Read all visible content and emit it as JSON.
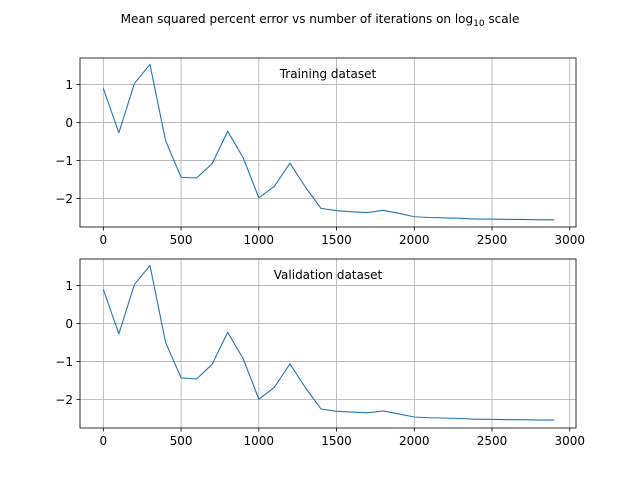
{
  "figure": {
    "suptitle_main": "Mean squared percent error vs number of iterations on log",
    "suptitle_sub": "10",
    "suptitle_tail": " scale"
  },
  "colors": {
    "line": "#1f77b4",
    "grid": "#b0b0b0",
    "axes": "#000000"
  },
  "chart_data": [
    {
      "type": "line",
      "title": "Training dataset",
      "xlabel": "",
      "ylabel": "",
      "xlim": [
        -150,
        3040
      ],
      "ylim": [
        -2.75,
        1.7
      ],
      "xticks": [
        0,
        500,
        1000,
        1500,
        2000,
        2500,
        3000
      ],
      "yticks": [
        1,
        0,
        -1,
        -2
      ],
      "ytick_labels": [
        "1",
        "0",
        "−1",
        "−2"
      ],
      "grid": true,
      "x": [
        0,
        100,
        200,
        300,
        400,
        500,
        600,
        700,
        800,
        900,
        1000,
        1100,
        1200,
        1300,
        1400,
        1500,
        1600,
        1700,
        1800,
        1900,
        2000,
        2100,
        2200,
        2300,
        2400,
        2500,
        2600,
        2700,
        2800,
        2900
      ],
      "series": [
        {
          "values": [
            0.9,
            -0.27,
            1.03,
            1.53,
            -0.47,
            -1.44,
            -1.46,
            -1.08,
            -0.23,
            -0.93,
            -1.98,
            -1.68,
            -1.07,
            -1.7,
            -2.26,
            -2.32,
            -2.35,
            -2.37,
            -2.31,
            -2.39,
            -2.48,
            -2.5,
            -2.51,
            -2.52,
            -2.54,
            -2.54,
            -2.55,
            -2.55,
            -2.56,
            -2.56
          ]
        }
      ]
    },
    {
      "type": "line",
      "title": "Validation dataset",
      "xlabel": "",
      "ylabel": "",
      "xlim": [
        -150,
        3040
      ],
      "ylim": [
        -2.75,
        1.7
      ],
      "xticks": [
        0,
        500,
        1000,
        1500,
        2000,
        2500,
        3000
      ],
      "yticks": [
        1,
        0,
        -1,
        -2
      ],
      "ytick_labels": [
        "1",
        "0",
        "−1",
        "−2"
      ],
      "grid": true,
      "x": [
        0,
        100,
        200,
        300,
        400,
        500,
        600,
        700,
        800,
        900,
        1000,
        1100,
        1200,
        1300,
        1400,
        1500,
        1600,
        1700,
        1800,
        1900,
        2000,
        2100,
        2200,
        2300,
        2400,
        2500,
        2600,
        2700,
        2800,
        2900
      ],
      "series": [
        {
          "values": [
            0.9,
            -0.27,
            1.03,
            1.53,
            -0.49,
            -1.43,
            -1.46,
            -1.07,
            -0.23,
            -0.93,
            -1.99,
            -1.68,
            -1.06,
            -1.69,
            -2.25,
            -2.31,
            -2.33,
            -2.35,
            -2.3,
            -2.38,
            -2.46,
            -2.48,
            -2.49,
            -2.5,
            -2.52,
            -2.52,
            -2.53,
            -2.53,
            -2.54,
            -2.54
          ]
        }
      ]
    }
  ]
}
